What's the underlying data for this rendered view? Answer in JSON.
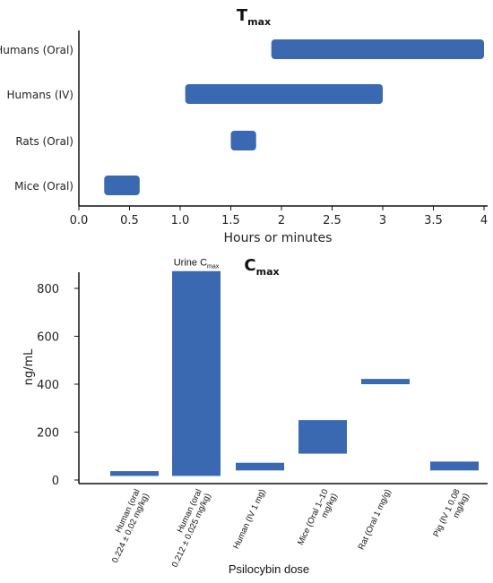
{
  "colors": {
    "bar": "#3a68b1",
    "axis": "#111111",
    "text": "#222222"
  },
  "chart_data": [
    {
      "type": "bar",
      "orientation": "horizontal-range",
      "title": "T",
      "title_subscript": "max",
      "xlabel": "Hours or minutes",
      "ylabel": "",
      "xlim": [
        0,
        4.2
      ],
      "xticks": [
        "0.0",
        "0.5",
        "1.0",
        "1.5",
        "2",
        "2.5",
        "3",
        "3.5",
        "4"
      ],
      "categories": [
        "Humans (Oral)",
        "Humans (IV)",
        "Rats (Oral)",
        "Mice (Oral)"
      ],
      "ranges": [
        [
          1.9,
          4.0
        ],
        [
          1.05,
          3.0
        ],
        [
          1.5,
          1.75
        ],
        [
          0.25,
          0.6
        ]
      ],
      "grid": false,
      "legend": "none"
    },
    {
      "type": "bar",
      "orientation": "vertical-floating",
      "title": "C",
      "title_subscript": "max",
      "xlabel": "Psilocybin dose",
      "ylabel": "ng/mL",
      "ylim": [
        0,
        880
      ],
      "yticks": [
        "0",
        "200",
        "400",
        "600",
        "800"
      ],
      "categories": [
        [
          "Human (oral",
          "0.224 ± 0.02 mg/kg)"
        ],
        [
          "Human (oral",
          "0.212 ± 0.025 mg/kg)"
        ],
        [
          "Human (IV 1 mg)"
        ],
        [
          "Mice (Oral 1–10",
          "mg/kg)"
        ],
        [
          "Rat (Oral 1 mg/g)"
        ],
        [
          "Pig (IV 1 0.08",
          "mg/kg)"
        ]
      ],
      "ranges": [
        [
          17,
          37
        ],
        [
          17,
          872
        ],
        [
          40,
          72
        ],
        [
          110,
          250
        ],
        [
          400,
          422
        ],
        [
          40,
          77
        ]
      ],
      "annotation": {
        "text": "Urine C",
        "subscript": "max",
        "category_index": 1
      },
      "grid": false,
      "legend": "none"
    }
  ]
}
